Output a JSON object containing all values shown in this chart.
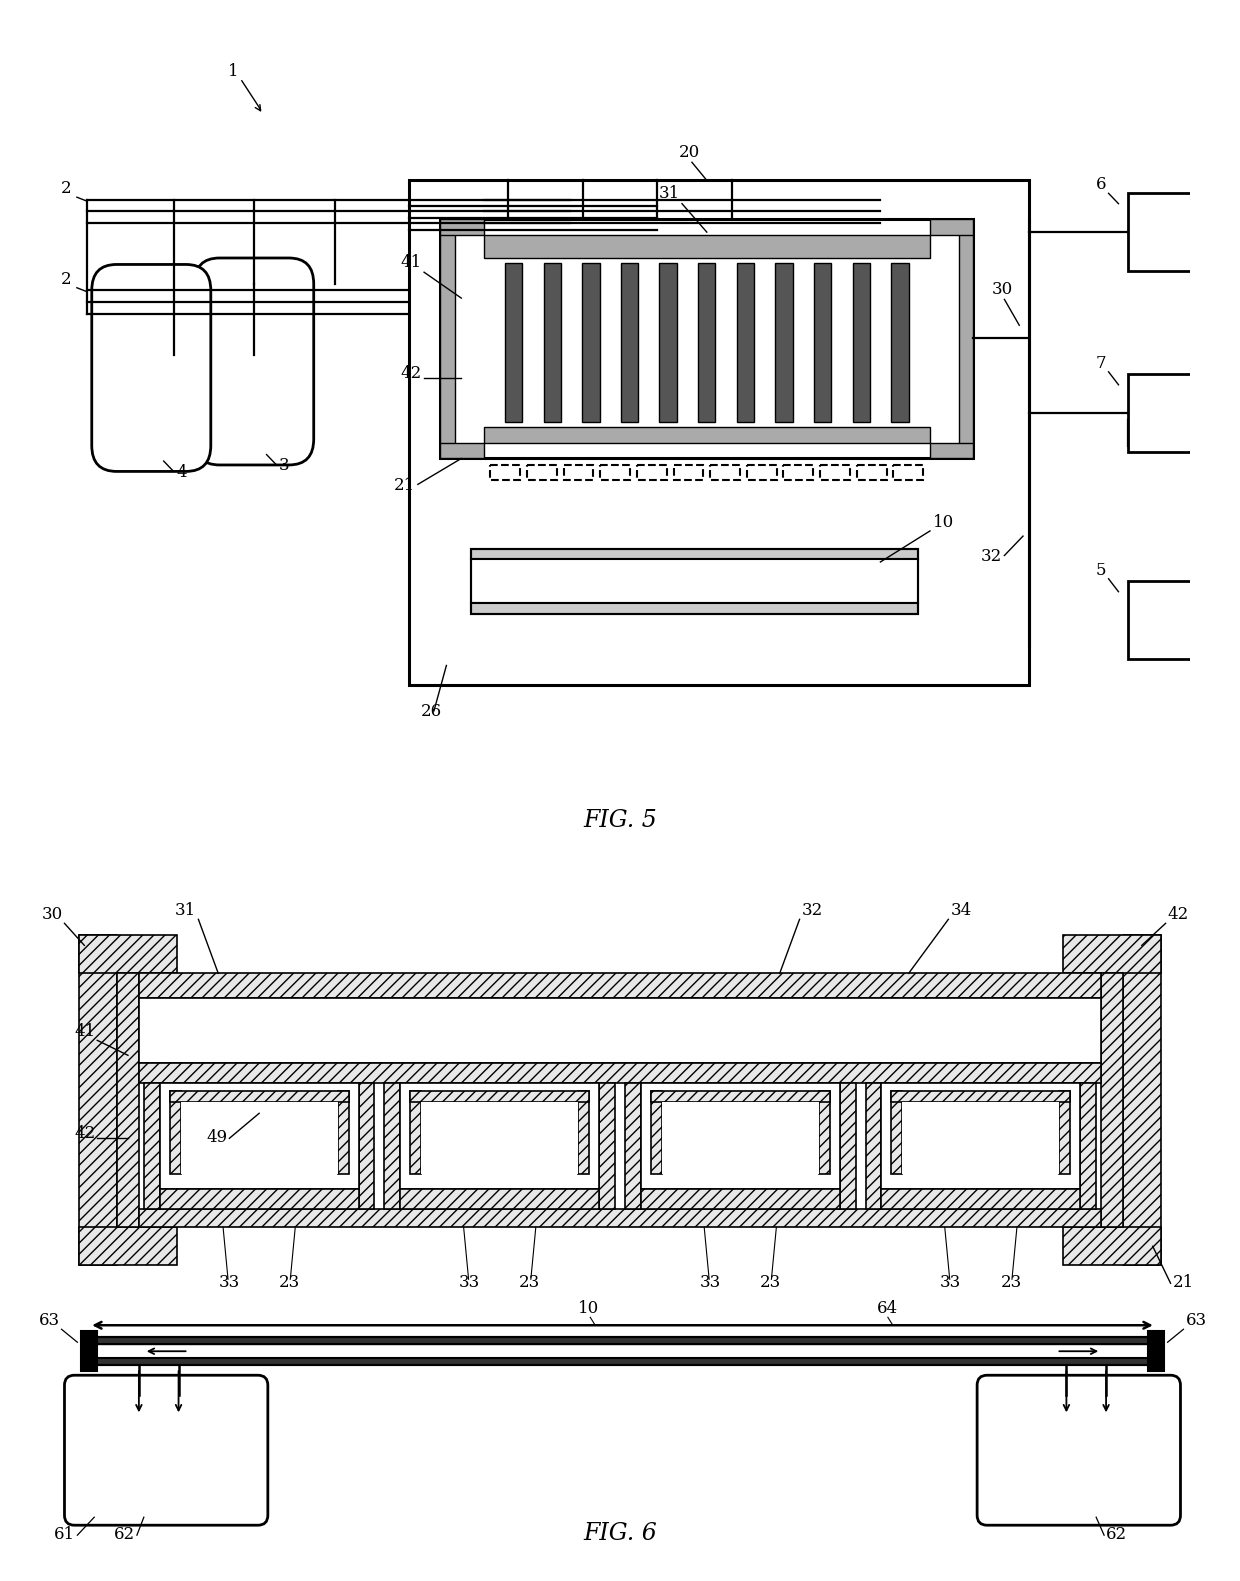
{
  "bg_color": "#ffffff",
  "line_color": "#000000",
  "fig5_label": "FIG. 5",
  "fig6_label": "FIG. 6"
}
